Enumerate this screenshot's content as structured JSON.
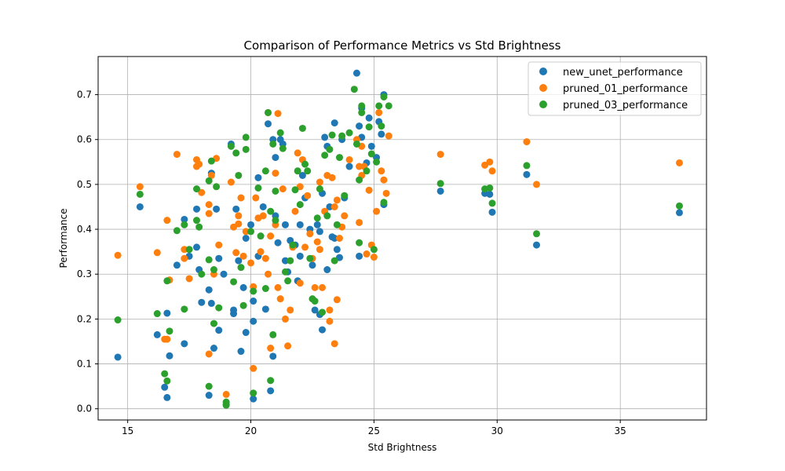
{
  "chart_data": {
    "type": "scatter",
    "title": "Comparison of Performance Metrics vs Std Brightness",
    "xlabel": "Std Brightness",
    "ylabel": "Performance",
    "xlim": [
      13.8,
      38.5
    ],
    "ylim": [
      -0.025,
      0.785
    ],
    "xticks": [
      15,
      20,
      25,
      30,
      35
    ],
    "yticks": [
      0.0,
      0.1,
      0.2,
      0.3,
      0.4,
      0.5,
      0.6,
      0.7
    ],
    "grid": true,
    "legend_position": "top-right",
    "series": [
      {
        "name": "new_unet_performance",
        "color": "#1f77b4",
        "points": [
          [
            14.6,
            0.115
          ],
          [
            15.5,
            0.45
          ],
          [
            16.2,
            0.165
          ],
          [
            16.5,
            0.048
          ],
          [
            16.6,
            0.025
          ],
          [
            16.6,
            0.213
          ],
          [
            16.7,
            0.118
          ],
          [
            17.0,
            0.32
          ],
          [
            17.3,
            0.145
          ],
          [
            17.3,
            0.422
          ],
          [
            17.5,
            0.34
          ],
          [
            17.8,
            0.445
          ],
          [
            17.8,
            0.36
          ],
          [
            17.9,
            0.31
          ],
          [
            18.0,
            0.237
          ],
          [
            18.3,
            0.265
          ],
          [
            18.3,
            0.03
          ],
          [
            18.4,
            0.525
          ],
          [
            18.4,
            0.235
          ],
          [
            18.5,
            0.135
          ],
          [
            18.6,
            0.445
          ],
          [
            18.7,
            0.335
          ],
          [
            18.7,
            0.175
          ],
          [
            18.9,
            0.3
          ],
          [
            19.0,
            0.01
          ],
          [
            19.2,
            0.59
          ],
          [
            19.3,
            0.22
          ],
          [
            19.3,
            0.212
          ],
          [
            19.4,
            0.445
          ],
          [
            19.5,
            0.33
          ],
          [
            19.6,
            0.128
          ],
          [
            19.7,
            0.27
          ],
          [
            19.8,
            0.38
          ],
          [
            19.8,
            0.17
          ],
          [
            20.0,
            0.41
          ],
          [
            20.1,
            0.24
          ],
          [
            20.1,
            0.195
          ],
          [
            20.1,
            0.022
          ],
          [
            20.3,
            0.515
          ],
          [
            20.3,
            0.34
          ],
          [
            20.5,
            0.45
          ],
          [
            20.6,
            0.222
          ],
          [
            20.7,
            0.635
          ],
          [
            20.8,
            0.04
          ],
          [
            20.9,
            0.117
          ],
          [
            20.9,
            0.6
          ],
          [
            21.0,
            0.56
          ],
          [
            21.0,
            0.43
          ],
          [
            21.1,
            0.37
          ],
          [
            21.2,
            0.6
          ],
          [
            21.3,
            0.59
          ],
          [
            21.4,
            0.33
          ],
          [
            21.4,
            0.41
          ],
          [
            21.5,
            0.305
          ],
          [
            21.6,
            0.375
          ],
          [
            21.8,
            0.365
          ],
          [
            21.9,
            0.285
          ],
          [
            22.0,
            0.34
          ],
          [
            22.0,
            0.41
          ],
          [
            22.1,
            0.52
          ],
          [
            22.2,
            0.47
          ],
          [
            22.4,
            0.4
          ],
          [
            22.5,
            0.32
          ],
          [
            22.6,
            0.22
          ],
          [
            22.7,
            0.41
          ],
          [
            22.8,
            0.21
          ],
          [
            22.8,
            0.395
          ],
          [
            22.9,
            0.48
          ],
          [
            22.9,
            0.176
          ],
          [
            23.0,
            0.605
          ],
          [
            23.1,
            0.585
          ],
          [
            23.1,
            0.31
          ],
          [
            23.2,
            0.45
          ],
          [
            23.3,
            0.383
          ],
          [
            23.4,
            0.38
          ],
          [
            23.4,
            0.637
          ],
          [
            23.5,
            0.355
          ],
          [
            23.6,
            0.337
          ],
          [
            23.7,
            0.6
          ],
          [
            23.8,
            0.47
          ],
          [
            24.0,
            0.54
          ],
          [
            24.3,
            0.748
          ],
          [
            24.4,
            0.34
          ],
          [
            24.4,
            0.63
          ],
          [
            24.5,
            0.605
          ],
          [
            24.5,
            0.67
          ],
          [
            24.7,
            0.548
          ],
          [
            24.8,
            0.648
          ],
          [
            24.9,
            0.585
          ],
          [
            25.1,
            0.56
          ],
          [
            25.2,
            0.64
          ],
          [
            25.3,
            0.612
          ],
          [
            25.4,
            0.7
          ],
          [
            25.4,
            0.455
          ],
          [
            27.7,
            0.485
          ],
          [
            29.5,
            0.48
          ],
          [
            29.7,
            0.478
          ],
          [
            29.8,
            0.438
          ],
          [
            31.2,
            0.522
          ],
          [
            31.6,
            0.365
          ],
          [
            37.4,
            0.437
          ]
        ]
      },
      {
        "name": "pruned_01_performance",
        "color": "#ff7f0e",
        "points": [
          [
            14.6,
            0.342
          ],
          [
            15.5,
            0.495
          ],
          [
            16.2,
            0.348
          ],
          [
            16.5,
            0.155
          ],
          [
            16.6,
            0.42
          ],
          [
            16.6,
            0.155
          ],
          [
            16.7,
            0.287
          ],
          [
            17.0,
            0.567
          ],
          [
            17.3,
            0.335
          ],
          [
            17.3,
            0.355
          ],
          [
            17.5,
            0.29
          ],
          [
            17.8,
            0.555
          ],
          [
            17.8,
            0.54
          ],
          [
            17.9,
            0.545
          ],
          [
            18.0,
            0.482
          ],
          [
            18.3,
            0.455
          ],
          [
            18.3,
            0.122
          ],
          [
            18.3,
            0.435
          ],
          [
            18.4,
            0.52
          ],
          [
            18.5,
            0.3
          ],
          [
            18.6,
            0.558
          ],
          [
            18.7,
            0.365
          ],
          [
            19.0,
            0.032
          ],
          [
            19.2,
            0.505
          ],
          [
            19.3,
            0.405
          ],
          [
            19.4,
            0.348
          ],
          [
            19.5,
            0.43
          ],
          [
            19.5,
            0.412
          ],
          [
            19.6,
            0.47
          ],
          [
            19.7,
            0.34
          ],
          [
            19.8,
            0.395
          ],
          [
            20.0,
            0.325
          ],
          [
            20.1,
            0.272
          ],
          [
            20.1,
            0.09
          ],
          [
            20.2,
            0.47
          ],
          [
            20.3,
            0.425
          ],
          [
            20.4,
            0.35
          ],
          [
            20.5,
            0.43
          ],
          [
            20.6,
            0.335
          ],
          [
            20.7,
            0.66
          ],
          [
            20.7,
            0.3
          ],
          [
            20.8,
            0.135
          ],
          [
            20.8,
            0.385
          ],
          [
            21.0,
            0.525
          ],
          [
            21.0,
            0.41
          ],
          [
            21.1,
            0.27
          ],
          [
            21.1,
            0.658
          ],
          [
            21.2,
            0.245
          ],
          [
            21.3,
            0.49
          ],
          [
            21.4,
            0.2
          ],
          [
            21.5,
            0.14
          ],
          [
            21.6,
            0.22
          ],
          [
            21.7,
            0.36
          ],
          [
            21.8,
            0.44
          ],
          [
            21.9,
            0.57
          ],
          [
            22.0,
            0.28
          ],
          [
            22.0,
            0.495
          ],
          [
            22.1,
            0.555
          ],
          [
            22.2,
            0.36
          ],
          [
            22.3,
            0.475
          ],
          [
            22.4,
            0.39
          ],
          [
            22.5,
            0.335
          ],
          [
            22.6,
            0.27
          ],
          [
            22.7,
            0.372
          ],
          [
            22.8,
            0.505
          ],
          [
            22.8,
            0.355
          ],
          [
            22.9,
            0.27
          ],
          [
            23.0,
            0.44
          ],
          [
            23.1,
            0.52
          ],
          [
            23.2,
            0.22
          ],
          [
            23.2,
            0.195
          ],
          [
            23.3,
            0.515
          ],
          [
            23.4,
            0.145
          ],
          [
            23.4,
            0.45
          ],
          [
            23.5,
            0.465
          ],
          [
            23.5,
            0.243
          ],
          [
            23.6,
            0.38
          ],
          [
            23.7,
            0.405
          ],
          [
            23.8,
            0.43
          ],
          [
            24.0,
            0.555
          ],
          [
            24.3,
            0.6
          ],
          [
            24.4,
            0.54
          ],
          [
            24.4,
            0.415
          ],
          [
            24.5,
            0.585
          ],
          [
            24.5,
            0.52
          ],
          [
            24.6,
            0.54
          ],
          [
            24.7,
            0.345
          ],
          [
            24.8,
            0.487
          ],
          [
            24.9,
            0.365
          ],
          [
            25.0,
            0.338
          ],
          [
            25.1,
            0.44
          ],
          [
            25.2,
            0.66
          ],
          [
            25.3,
            0.53
          ],
          [
            25.4,
            0.51
          ],
          [
            25.5,
            0.48
          ],
          [
            25.6,
            0.608
          ],
          [
            27.7,
            0.567
          ],
          [
            29.5,
            0.543
          ],
          [
            29.7,
            0.55
          ],
          [
            29.8,
            0.53
          ],
          [
            31.2,
            0.595
          ],
          [
            31.6,
            0.5
          ],
          [
            37.4,
            0.548
          ]
        ]
      },
      {
        "name": "pruned_03_performance",
        "color": "#2ca02c",
        "points": [
          [
            14.6,
            0.198
          ],
          [
            15.5,
            0.478
          ],
          [
            16.2,
            0.212
          ],
          [
            16.5,
            0.078
          ],
          [
            16.6,
            0.285
          ],
          [
            16.6,
            0.062
          ],
          [
            16.7,
            0.173
          ],
          [
            17.0,
            0.397
          ],
          [
            17.3,
            0.222
          ],
          [
            17.3,
            0.41
          ],
          [
            17.5,
            0.355
          ],
          [
            17.8,
            0.49
          ],
          [
            17.8,
            0.42
          ],
          [
            17.9,
            0.405
          ],
          [
            18.0,
            0.3
          ],
          [
            18.3,
            0.332
          ],
          [
            18.3,
            0.05
          ],
          [
            18.3,
            0.508
          ],
          [
            18.4,
            0.552
          ],
          [
            18.5,
            0.19
          ],
          [
            18.5,
            0.31
          ],
          [
            18.6,
            0.495
          ],
          [
            18.7,
            0.225
          ],
          [
            19.0,
            0.015
          ],
          [
            19.0,
            0.008
          ],
          [
            19.2,
            0.585
          ],
          [
            19.3,
            0.283
          ],
          [
            19.4,
            0.57
          ],
          [
            19.5,
            0.52
          ],
          [
            19.6,
            0.315
          ],
          [
            19.7,
            0.23
          ],
          [
            19.8,
            0.605
          ],
          [
            19.8,
            0.578
          ],
          [
            20.0,
            0.395
          ],
          [
            20.1,
            0.262
          ],
          [
            20.1,
            0.035
          ],
          [
            20.3,
            0.492
          ],
          [
            20.4,
            0.385
          ],
          [
            20.6,
            0.268
          ],
          [
            20.6,
            0.53
          ],
          [
            20.7,
            0.66
          ],
          [
            20.8,
            0.063
          ],
          [
            20.8,
            0.44
          ],
          [
            20.9,
            0.165
          ],
          [
            20.9,
            0.59
          ],
          [
            21.0,
            0.485
          ],
          [
            21.0,
            0.42
          ],
          [
            21.2,
            0.615
          ],
          [
            21.3,
            0.58
          ],
          [
            21.4,
            0.305
          ],
          [
            21.5,
            0.285
          ],
          [
            21.6,
            0.33
          ],
          [
            21.7,
            0.365
          ],
          [
            21.8,
            0.488
          ],
          [
            21.9,
            0.53
          ],
          [
            22.0,
            0.455
          ],
          [
            22.1,
            0.625
          ],
          [
            22.2,
            0.545
          ],
          [
            22.3,
            0.53
          ],
          [
            22.4,
            0.335
          ],
          [
            22.5,
            0.245
          ],
          [
            22.6,
            0.24
          ],
          [
            22.7,
            0.425
          ],
          [
            22.8,
            0.49
          ],
          [
            22.9,
            0.215
          ],
          [
            23.0,
            0.565
          ],
          [
            23.1,
            0.43
          ],
          [
            23.2,
            0.578
          ],
          [
            23.3,
            0.61
          ],
          [
            23.4,
            0.33
          ],
          [
            23.5,
            0.41
          ],
          [
            23.6,
            0.56
          ],
          [
            23.7,
            0.608
          ],
          [
            23.8,
            0.475
          ],
          [
            24.0,
            0.615
          ],
          [
            24.2,
            0.712
          ],
          [
            24.3,
            0.59
          ],
          [
            24.4,
            0.51
          ],
          [
            24.4,
            0.37
          ],
          [
            24.5,
            0.66
          ],
          [
            24.5,
            0.675
          ],
          [
            24.7,
            0.53
          ],
          [
            24.8,
            0.628
          ],
          [
            24.9,
            0.568
          ],
          [
            25.0,
            0.355
          ],
          [
            25.1,
            0.55
          ],
          [
            25.2,
            0.675
          ],
          [
            25.3,
            0.63
          ],
          [
            25.4,
            0.46
          ],
          [
            25.4,
            0.695
          ],
          [
            25.6,
            0.675
          ],
          [
            27.7,
            0.502
          ],
          [
            29.5,
            0.49
          ],
          [
            29.7,
            0.492
          ],
          [
            29.8,
            0.458
          ],
          [
            31.2,
            0.542
          ],
          [
            31.6,
            0.39
          ],
          [
            37.4,
            0.452
          ]
        ]
      }
    ]
  }
}
